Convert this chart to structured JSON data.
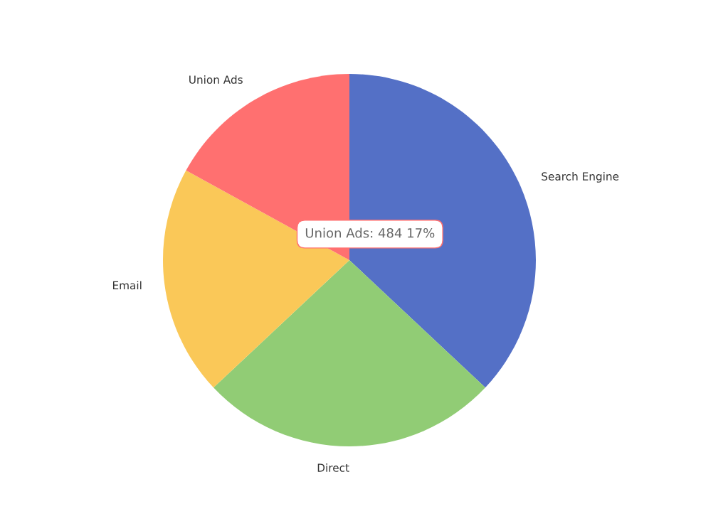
{
  "chart_data": {
    "type": "pie",
    "categories": [
      "Search Engine",
      "Direct",
      "Email",
      "Union Ads"
    ],
    "values": [
      37,
      26,
      20,
      17
    ],
    "colors": [
      "#5470c6",
      "#91cc75",
      "#fac858",
      "#ff7070"
    ],
    "annotations": [
      "Union Ads: 484 17%"
    ]
  }
}
